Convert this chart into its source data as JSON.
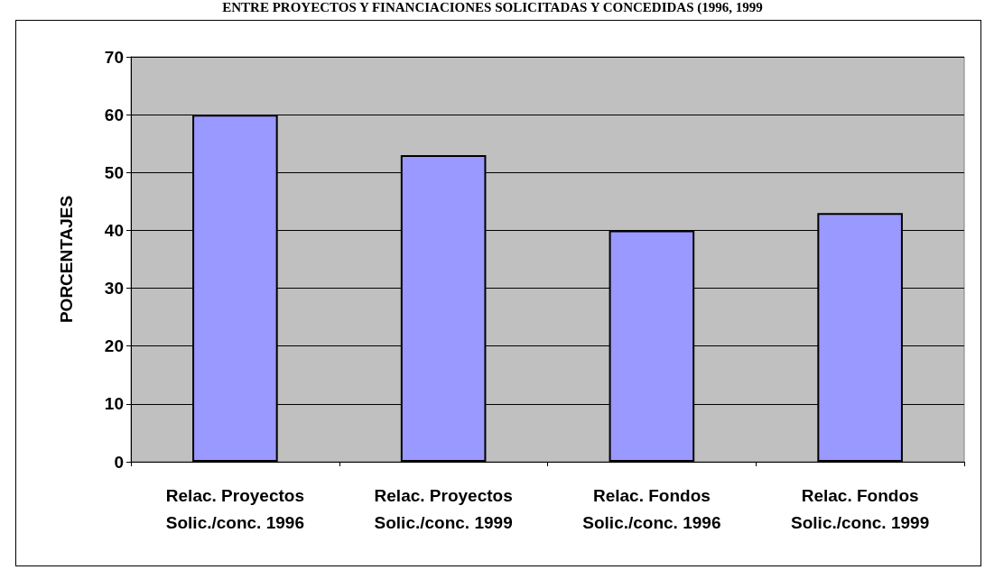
{
  "chart_data": {
    "type": "bar",
    "title": "ENTRE PROYECTOS Y FINANCIACIONES SOLICITADAS Y CONCEDIDAS (1996, 1999",
    "ylabel": "PORCENTAJES",
    "categories": [
      "Relac. Proyectos\nSolic./conc. 1996",
      "Relac. Proyectos\nSolic./conc. 1999",
      "Relac. Fondos\nSolic./conc. 1996",
      "Relac. Fondos\nSolic./conc. 1999"
    ],
    "values": [
      60,
      53,
      40,
      43
    ],
    "color": "#9999ff",
    "ylim": [
      0,
      70
    ],
    "yticks": [
      0,
      10,
      20,
      30,
      40,
      50,
      60,
      70
    ],
    "grid": "y"
  }
}
